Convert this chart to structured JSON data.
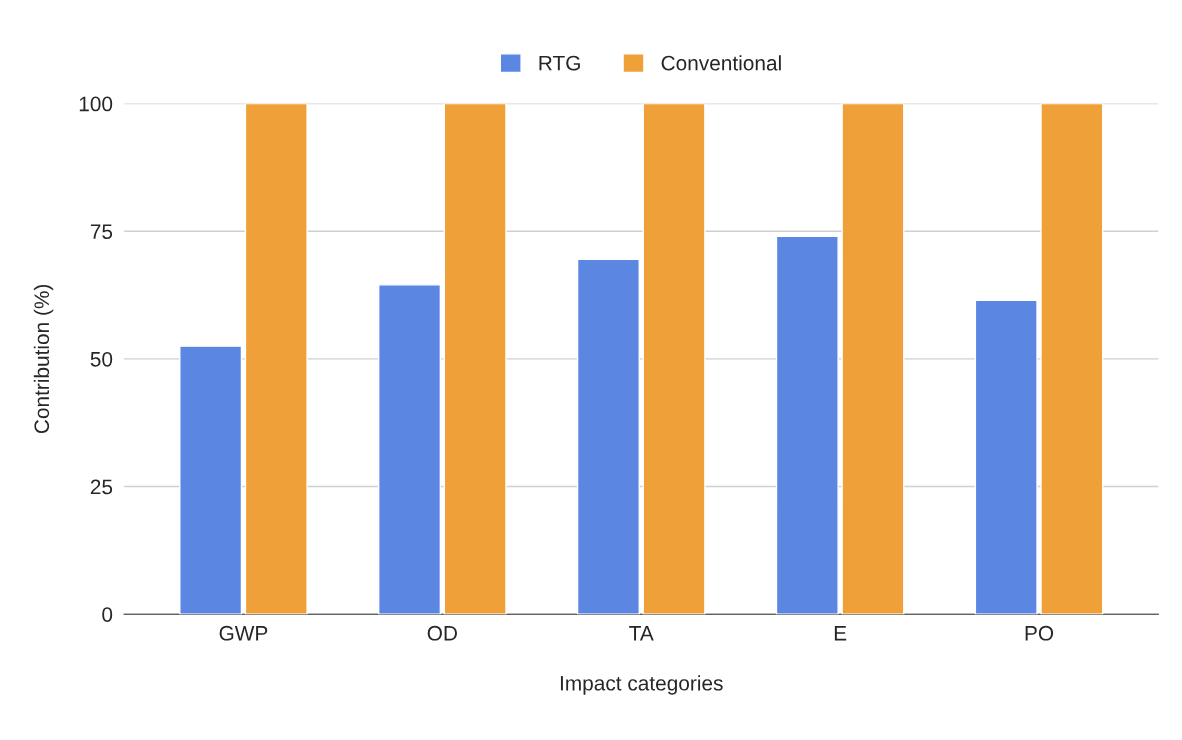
{
  "chart_data": {
    "type": "bar",
    "xlabel": "Impact categories",
    "ylabel": "Contribution (%)",
    "categories": [
      "GWP",
      "OD",
      "TA",
      "E",
      "PO"
    ],
    "series": [
      {
        "name": "RTG",
        "color": "#5b87e2",
        "values": [
          52.5,
          64.5,
          69.5,
          74,
          61.5
        ]
      },
      {
        "name": "Conventional",
        "color": "#f0a038",
        "values": [
          100,
          100,
          100,
          100,
          100
        ]
      }
    ],
    "ylim": [
      0,
      100
    ],
    "yticks": [
      0,
      25,
      50,
      75,
      100
    ],
    "grid": "y",
    "legend": "top"
  }
}
